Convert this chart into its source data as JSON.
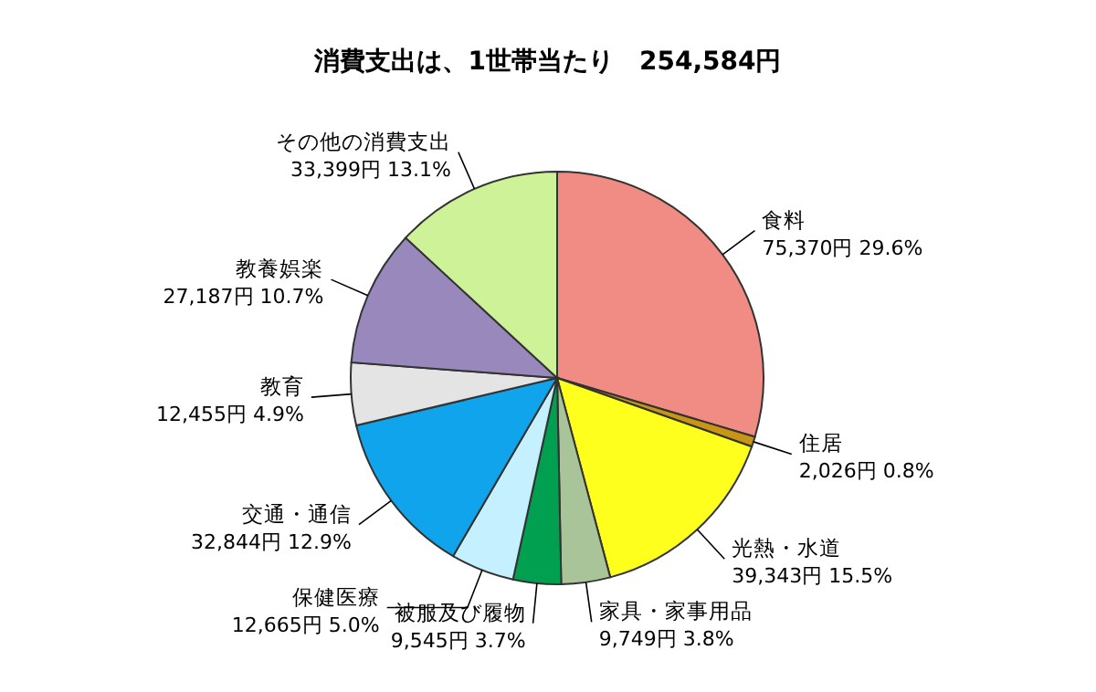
{
  "chart_data": {
    "type": "pie",
    "title": "消費支出は、1世帯当たり　254,584円",
    "categories": [
      "食料",
      "住居",
      "光熱・水道",
      "家具・家事用品",
      "被服及び履物",
      "保健医療",
      "交通・通信",
      "教育",
      "教養娯楽",
      "その他の消費支出"
    ],
    "values": [
      75370,
      2026,
      39343,
      9749,
      9545,
      12665,
      32844,
      12455,
      27187,
      33399
    ],
    "value_labels": [
      "75,370円 29.6%",
      "2,026円 0.8%",
      "39,343円 15.5%",
      "9,749円 3.8%",
      "9,545円 3.7%",
      "12,665円 5.0%",
      "32,844円 12.9%",
      "12,455円 4.9%",
      "27,187円 10.7%",
      "33,399円 13.1%"
    ],
    "colors": [
      "#f08c84",
      "#c89614",
      "#ffff1e",
      "#a8c498",
      "#00a050",
      "#c4f0ff",
      "#10a4ec",
      "#e4e4e4",
      "#9888bc",
      "#cef298"
    ]
  }
}
